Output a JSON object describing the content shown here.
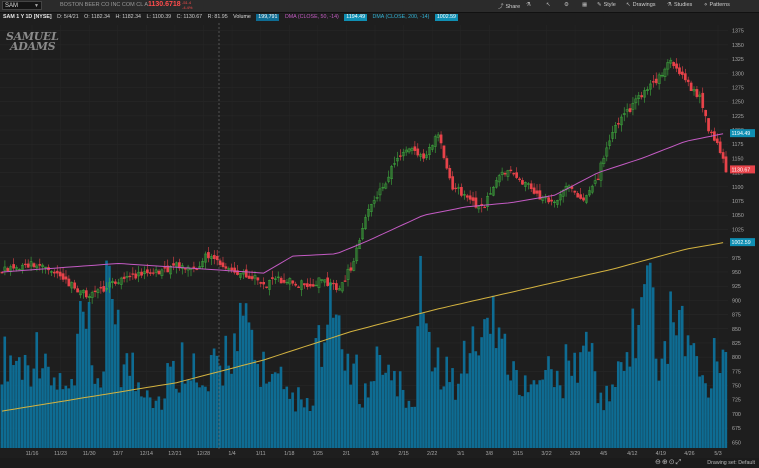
{
  "toolbar": {
    "symbol": "SAM",
    "company": "BOSTON BEER CO INC COM CL A",
    "last_price": "1130.6718",
    "change_top": "-51.4",
    "change_bottom": "-4.4%",
    "share": "Share",
    "style": "Style",
    "drawings": "Drawings",
    "studies": "Studies",
    "patterns": "Patterns"
  },
  "info": {
    "label": "SAM 1 Y 1D [NYSE]",
    "date": "D: 5/4/21",
    "open": "O: 1182.34",
    "high": "H: 1182.34",
    "low": "L: 1100.39",
    "close": "C: 1130.67",
    "range": "R: 81.95",
    "volume_label": "Volume",
    "volume_value": "199,791",
    "dma50_label": "DMA (CLOSE, 50, -14)",
    "dma50_value": "1194.49",
    "dma200_label": "DMA (CLOSE, 200, -14)",
    "dma200_value": "1002.59"
  },
  "watermark": [
    "SAMUEL",
    "ADAMS"
  ],
  "price_labels": {
    "dma50": "1194.49",
    "last": "1130.67",
    "dma200": "1002.59"
  },
  "bottom": {
    "drawing_set": "Drawing set: Default"
  },
  "icons": {
    "share": "share-icon",
    "style": "style-icon",
    "drawings": "cursor-icon",
    "studies": "flask-icon",
    "patterns": "pattern-icon",
    "settings": "gear-icon"
  },
  "colors": {
    "background": "#1e1e1e",
    "up": "#3fae3f",
    "down": "#e8434a",
    "volume": "#0e6c93",
    "dma50": "#c45bc4",
    "dma200": "#d4b340",
    "dma50_tag": "#0f8fb3",
    "last_tag": "#e8434a"
  },
  "chart_data": {
    "type": "candlestick",
    "x_ticks": [
      "11/16",
      "11/23",
      "11/30",
      "12/7",
      "12/14",
      "12/21",
      "12/28",
      "1/4",
      "1/11",
      "1/18",
      "1/25",
      "2/1",
      "2/8",
      "2/15",
      "2/22",
      "3/1",
      "3/8",
      "3/15",
      "3/22",
      "3/29",
      "4/5",
      "4/12",
      "4/19",
      "4/26",
      "5/3"
    ],
    "y_ticks": [
      1375,
      1350,
      1325,
      1300,
      1275,
      1250,
      1225,
      1200,
      1175,
      1150,
      1125,
      1100,
      1075,
      1050,
      1025,
      1000,
      975,
      950,
      925,
      900,
      875,
      850,
      825,
      800,
      775,
      750,
      725,
      700,
      675,
      650
    ],
    "ylim": [
      640,
      1385
    ],
    "series": [
      {
        "name": "SAM",
        "close_points": [
          [
            0,
            955
          ],
          [
            10,
            965
          ],
          [
            20,
            942
          ],
          [
            25,
            925
          ],
          [
            30,
            905
          ],
          [
            40,
            935
          ],
          [
            50,
            948
          ],
          [
            60,
            960
          ],
          [
            65,
            950
          ],
          [
            70,
            975
          ],
          [
            75,
            965
          ],
          [
            80,
            952
          ],
          [
            85,
            945
          ],
          [
            90,
            925
          ],
          [
            95,
            938
          ],
          [
            100,
            932
          ],
          [
            105,
            925
          ],
          [
            110,
            938
          ],
          [
            115,
            920
          ],
          [
            120,
            955
          ],
          [
            125,
            1050
          ],
          [
            130,
            1090
          ],
          [
            135,
            1140
          ],
          [
            140,
            1170
          ],
          [
            145,
            1150
          ],
          [
            150,
            1190
          ],
          [
            155,
            1100
          ],
          [
            160,
            1080
          ],
          [
            165,
            1060
          ],
          [
            170,
            1115
          ],
          [
            175,
            1130
          ],
          [
            180,
            1105
          ],
          [
            185,
            1085
          ],
          [
            190,
            1070
          ],
          [
            195,
            1100
          ],
          [
            200,
            1080
          ],
          [
            205,
            1120
          ],
          [
            210,
            1195
          ],
          [
            215,
            1230
          ],
          [
            220,
            1260
          ],
          [
            225,
            1285
          ],
          [
            230,
            1320
          ],
          [
            235,
            1290
          ],
          [
            240,
            1255
          ],
          [
            243,
            1200
          ],
          [
            246,
            1180
          ],
          [
            249,
            1131
          ]
        ]
      },
      {
        "name": "DMA (CLOSE, 50, -14)",
        "points": [
          [
            0,
            950
          ],
          [
            40,
            965
          ],
          [
            70,
            955
          ],
          [
            90,
            948
          ],
          [
            100,
            978
          ],
          [
            115,
            982
          ],
          [
            125,
            1003
          ],
          [
            145,
            1050
          ],
          [
            160,
            1065
          ],
          [
            175,
            1072
          ],
          [
            190,
            1085
          ],
          [
            205,
            1125
          ],
          [
            220,
            1150
          ],
          [
            235,
            1180
          ],
          [
            249,
            1194.49
          ]
        ]
      },
      {
        "name": "DMA (CLOSE, 200, -14)",
        "points": [
          [
            0,
            705
          ],
          [
            30,
            730
          ],
          [
            60,
            755
          ],
          [
            90,
            795
          ],
          [
            120,
            845
          ],
          [
            150,
            885
          ],
          [
            180,
            920
          ],
          [
            210,
            955
          ],
          [
            235,
            990
          ],
          [
            249,
            1002.59
          ]
        ]
      },
      {
        "name": "Volume",
        "note": "overlay bars, relative height 0-1",
        "values_relative": [
          0.55,
          0.52,
          0.6,
          0.4,
          0.35,
          0.7,
          0.45,
          0.9,
          0.5,
          0.4,
          0.3,
          0.45,
          0.55,
          0.35,
          0.48,
          0.62,
          0.72,
          0.5,
          0.4,
          0.3,
          0.25,
          0.6,
          0.8,
          0.45,
          0.35,
          0.55,
          0.4,
          0.3,
          0.95,
          0.5,
          0.4,
          0.6,
          0.7,
          0.85,
          0.45,
          0.35,
          0.55,
          0.4,
          0.5,
          0.6,
          0.3,
          0.45,
          0.7,
          1.0,
          0.55,
          0.8,
          0.6,
          0.4,
          0.62
        ]
      }
    ]
  }
}
